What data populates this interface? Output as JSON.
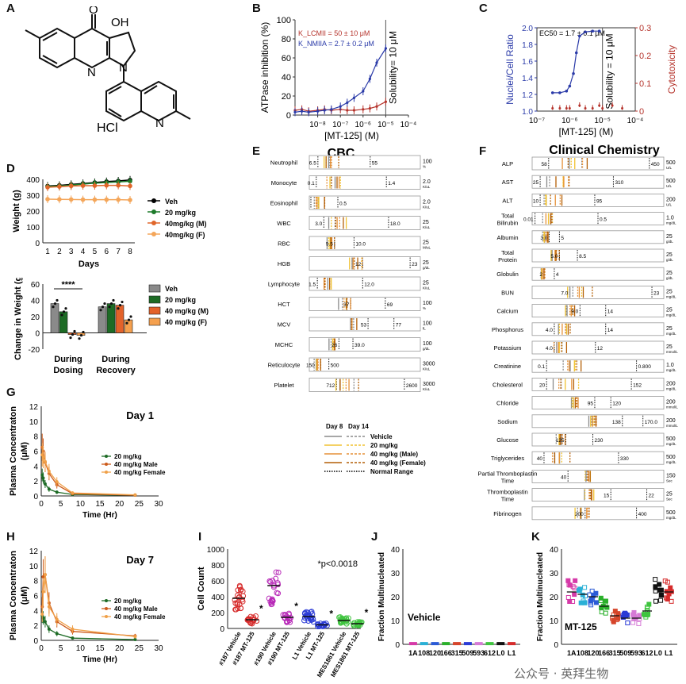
{
  "panel_letters": [
    "A",
    "B",
    "C",
    "D",
    "E",
    "F",
    "G",
    "H",
    "I",
    "J",
    "K"
  ],
  "structure": {
    "label_hcl": "HCl",
    "label_oh": "OH",
    "label_o": "O",
    "label_n1": "N",
    "label_n2": "N",
    "label_n3": "N"
  },
  "chart_data": [
    {
      "id": "B",
      "type": "line",
      "xlabel": "[MT-125] (M)",
      "ylabel": "ATPase inhibition (%)",
      "xscale": "log",
      "xlim": [
        1e-09,
        0.0001
      ],
      "ylim": [
        0,
        100
      ],
      "yticks": [
        0,
        20,
        40,
        60,
        80,
        100
      ],
      "xtick_labels": [
        "10^-8",
        "10^-7",
        "10^-6",
        "10^-5",
        "10^-4"
      ],
      "annotations": [
        "K_LCMII = 50 ± 10 μM",
        "K_NMIIA = 2.7 ± 0.2 μM",
        "Solubility= 10 μM"
      ],
      "series": [
        {
          "name": "LCMII",
          "color": "#b5332b",
          "x": [
            1e-09,
            2e-09,
            4e-09,
            1e-08,
            2e-08,
            4e-08,
            1e-07,
            2e-07,
            4e-07,
            1e-06,
            2e-06,
            4e-06,
            1e-05
          ],
          "y": [
            5,
            6,
            4,
            5,
            6,
            5,
            6,
            5,
            5,
            6,
            7,
            9,
            14
          ]
        },
        {
          "name": "NMIIA",
          "color": "#2a3aa8",
          "x": [
            1e-09,
            2e-09,
            4e-09,
            1e-08,
            2e-08,
            4e-08,
            1e-07,
            2e-07,
            4e-07,
            1e-06,
            2e-06,
            4e-06,
            1e-05
          ],
          "y": [
            3,
            4,
            3,
            4,
            5,
            6,
            9,
            13,
            18,
            25,
            38,
            55,
            70
          ]
        }
      ]
    },
    {
      "id": "C",
      "type": "line",
      "xlabel": "[MT-125] (M)",
      "ylabel": "Nuclei/Cell Ratio",
      "y2label": "Cytotoxicity",
      "xscale": "log",
      "xlim": [
        1e-07,
        0.0001
      ],
      "ylim": [
        1.0,
        2.0
      ],
      "yticks": [
        1.0,
        1.2,
        1.4,
        1.6,
        1.8,
        2.0
      ],
      "y2lim": [
        0,
        0.3
      ],
      "y2ticks": [
        0,
        0.1,
        0.2,
        0.3
      ],
      "xtick_labels": [
        "10^-7",
        "10^-6",
        "10^-5",
        "10^-4"
      ],
      "annotations": [
        "EC50 = 1.7 ± 0.1 μM",
        "Solubility = 10 μM"
      ],
      "series": [
        {
          "name": "Nuclei/Cell Ratio",
          "color": "#2a3aa8",
          "x": [
            3e-07,
            5e-07,
            8e-07,
            1e-06,
            1.3e-06,
            1.6e-06,
            2e-06,
            3e-06,
            5e-06,
            8e-06
          ],
          "y": [
            1.22,
            1.22,
            1.24,
            1.3,
            1.45,
            1.7,
            1.9,
            1.95,
            1.96,
            1.96
          ]
        },
        {
          "name": "Cytotoxicity",
          "color": "#b5332b",
          "x": [
            3e-07,
            5e-07,
            8e-07,
            1e-06,
            2e-06,
            3e-06,
            5e-06,
            8e-06,
            1e-05,
            2e-05,
            4e-05
          ],
          "y": [
            0.01,
            0.01,
            0.01,
            0.01,
            0.02,
            0.01,
            0.01,
            0.02,
            0.01,
            0.02,
            0.01
          ]
        }
      ]
    },
    {
      "id": "D1",
      "type": "line",
      "xlabel": "Days",
      "ylabel": "Weight (g)",
      "ylim": [
        0,
        400
      ],
      "yticks": [
        0,
        100,
        200,
        300,
        400
      ],
      "categories": [
        1,
        2,
        3,
        4,
        5,
        6,
        7,
        8
      ],
      "series": [
        {
          "name": "Veh",
          "color": "#000000",
          "values": [
            358,
            362,
            368,
            374,
            380,
            386,
            390,
            396
          ]
        },
        {
          "name": "20 mg/kg",
          "color": "#1d7a2a",
          "values": [
            355,
            358,
            364,
            370,
            376,
            380,
            384,
            388
          ]
        },
        {
          "name": "40mg/kg (M)",
          "color": "#e0662a",
          "values": [
            350,
            354,
            358,
            360,
            360,
            362,
            362,
            358
          ]
        },
        {
          "name": "40mg/kg (F)",
          "color": "#f4a65a",
          "values": [
            275,
            274,
            273,
            272,
            272,
            272,
            272,
            270
          ]
        }
      ]
    },
    {
      "id": "D2",
      "type": "bar",
      "ylabel": "Change in Weight (g)",
      "ylim": [
        -20,
        60
      ],
      "yticks": [
        -20,
        0,
        20,
        40,
        60
      ],
      "categories": [
        "During Dosing",
        "During Recovery"
      ],
      "annotations": [
        "****"
      ],
      "series": [
        {
          "name": "Veh",
          "color": "#8a8a8a",
          "values": [
            36,
            32
          ]
        },
        {
          "name": "20 mg/kg",
          "color": "#1d6b25",
          "values": [
            26,
            36
          ]
        },
        {
          "name": "40 mg/kg (M)",
          "color": "#e3622a",
          "values": [
            -2,
            34
          ]
        },
        {
          "name": "40 mg/kg (F)",
          "color": "#f5a04e",
          "values": [
            -3,
            16
          ]
        }
      ]
    },
    {
      "id": "E",
      "type": "table",
      "title": "CBC",
      "rows": [
        {
          "name": "Neutrophil",
          "low": "6.5",
          "high": "55",
          "unit": "100 %",
          "range": [
            6.5,
            55
          ],
          "max": 100
        },
        {
          "name": "Monocyte",
          "low": "0.1",
          "high": "1.4",
          "unit": "2.0 K/uL",
          "range": [
            0.1,
            1.4
          ],
          "max": 2
        },
        {
          "name": "Eosinophil",
          "low": "",
          "high": "0.5",
          "unit": "2.0 K/uL",
          "range": [
            0,
            0.5
          ],
          "max": 2
        },
        {
          "name": "WBC",
          "low": "3.0",
          "high": "18.0",
          "unit": "25 K/uL",
          "range": [
            3,
            18
          ],
          "max": 25
        },
        {
          "name": "RBC",
          "low": "5.5",
          "high": "10.0",
          "unit": "25 M/uL",
          "range": [
            5.5,
            10
          ],
          "max": 25
        },
        {
          "name": "HGB",
          "low": "12",
          "high": "23",
          "unit": "25 g/dL",
          "range": [
            12,
            23
          ],
          "max": 25
        },
        {
          "name": "Lymphocyte",
          "low": "1.5",
          "high": "12.0",
          "unit": "25 K/uL",
          "range": [
            1.5,
            12
          ],
          "max": 25
        },
        {
          "name": "HCT",
          "low": "37",
          "high": "69",
          "unit": "100 %",
          "range": [
            37,
            69
          ],
          "max": 100
        },
        {
          "name": "MCV",
          "low": "53",
          "high": "77",
          "unit": "100 fL",
          "range": [
            53,
            77
          ],
          "max": 100
        },
        {
          "name": "MCHC",
          "low": "26",
          "high": "39.0",
          "unit": "100 g/dL",
          "range": [
            26,
            39
          ],
          "max": 100
        },
        {
          "name": "Reticulocyte",
          "low": "150",
          "high": "500",
          "unit": "3000 K/uL",
          "range": [
            150,
            500
          ],
          "max": 3000
        },
        {
          "name": "Platelet",
          "low": "712",
          "high": "2600",
          "unit": "3000 K/uL",
          "range": [
            712,
            2600
          ],
          "max": 3000
        }
      ]
    },
    {
      "id": "F",
      "type": "table",
      "title": "Clinical Chemistry",
      "rows": [
        {
          "name": "ALP",
          "low": "58",
          "high": "450",
          "unit": "500 U/L",
          "range": [
            58,
            450
          ],
          "max": 500
        },
        {
          "name": "AST",
          "low": "25",
          "high": "310",
          "unit": "500 U/L",
          "range": [
            25,
            310
          ],
          "max": 500
        },
        {
          "name": "ALT",
          "low": "10",
          "high": "95",
          "unit": "200 U/L",
          "range": [
            10,
            95
          ],
          "max": 200
        },
        {
          "name": "Total Bilirubin",
          "low": "0.01",
          "high": "0.5",
          "unit": "1.0 mg/dL",
          "range": [
            0.01,
            0.5
          ],
          "max": 1
        },
        {
          "name": "Albumin",
          "low": "3.0",
          "high": "5",
          "unit": "25 g/dL",
          "range": [
            3,
            5
          ],
          "max": 25
        },
        {
          "name": "Total Protein",
          "low": "5.0",
          "high": "8.5",
          "unit": "25 g/dL",
          "range": [
            5,
            8.5
          ],
          "max": 25
        },
        {
          "name": "Globulin",
          "low": "2",
          "high": "4",
          "unit": "25 g/dL",
          "range": [
            2,
            4
          ],
          "max": 25
        },
        {
          "name": "BUN",
          "low": "7.0",
          "high": "23",
          "unit": "25 mg/dL",
          "range": [
            7,
            23
          ],
          "max": 25
        },
        {
          "name": "Calcium",
          "low": "9.0",
          "high": "14",
          "unit": "25 mg/dL",
          "range": [
            9,
            14
          ],
          "max": 25
        },
        {
          "name": "Phosphorus",
          "low": "4.0",
          "high": "14",
          "unit": "25 mg/dL",
          "range": [
            4,
            14
          ],
          "max": 25
        },
        {
          "name": "Potassium",
          "low": "4.0",
          "high": "12",
          "unit": "25 mmol/L",
          "range": [
            4,
            12
          ],
          "max": 25
        },
        {
          "name": "Creatinine",
          "low": "0.1",
          "high": "0.800",
          "unit": "1.0 mg/dL",
          "range": [
            0.1,
            0.8
          ],
          "max": 1
        },
        {
          "name": "Cholesterol",
          "low": "20",
          "high": "152",
          "unit": "200 mg/dL",
          "range": [
            20,
            152
          ],
          "max": 200
        },
        {
          "name": "Chloride",
          "low": "95",
          "high": "120",
          "unit": "200 mmol/L",
          "range": [
            95,
            120
          ],
          "max": 200
        },
        {
          "name": "Sodium",
          "low": "138",
          "high": "170.0",
          "unit": "200 mmol/L",
          "range": [
            138,
            170
          ],
          "max": 200
        },
        {
          "name": "Glucose",
          "low": "125",
          "high": "230",
          "unit": "500 mg/dL",
          "range": [
            125,
            230
          ],
          "max": 500
        },
        {
          "name": "Triglycerides",
          "low": "40",
          "high": "330",
          "unit": "500 mg/dL",
          "range": [
            40,
            330
          ],
          "max": 500
        },
        {
          "name": "Partial Thromboplastin Time",
          "low": "40",
          "high": "",
          "unit": "150 Sec",
          "range": [
            40,
            0
          ],
          "max": 150
        },
        {
          "name": "Thromboplastin Time",
          "low": "15",
          "high": "22",
          "unit": "25 Sec",
          "range": [
            15,
            22
          ],
          "max": 25
        },
        {
          "name": "Fibrinogen",
          "low": "200",
          "high": "400",
          "unit": "500 mg/dL",
          "range": [
            200,
            400
          ],
          "max": 500
        }
      ]
    },
    {
      "id": "EF-legend",
      "type": "legend",
      "headers": [
        "Day 8",
        "Day 14"
      ],
      "entries": [
        {
          "name": "Vehicle",
          "color": "#8a8a8a"
        },
        {
          "name": "20 mg/kg",
          "color": "#f1c232"
        },
        {
          "name": "40 mg/kg (Male)",
          "color": "#e69138"
        },
        {
          "name": "40 mg/kg (Female)",
          "color": "#b45f06"
        },
        {
          "name": "Normal Range",
          "color": "#000000"
        }
      ]
    },
    {
      "id": "G",
      "type": "line",
      "title": "Day 1",
      "xlabel": "Time (Hr)",
      "ylabel": "Plasma Concentraton (μM)",
      "xlim": [
        0,
        30
      ],
      "ylim": [
        0,
        12
      ],
      "xticks": [
        0,
        5,
        10,
        15,
        20,
        25,
        30
      ],
      "yticks": [
        0,
        2,
        4,
        6,
        8,
        10,
        12
      ],
      "series": [
        {
          "name": "20 mg/kg",
          "color": "#1d6b25",
          "x": [
            0.25,
            0.5,
            1,
            2,
            4,
            8,
            24
          ],
          "y": [
            2.8,
            2.4,
            1.6,
            0.9,
            0.5,
            0.2,
            0.1
          ]
        },
        {
          "name": "40 mg/kg Male",
          "color": "#cc5a1a",
          "x": [
            0.25,
            0.5,
            1,
            2,
            4,
            8,
            24
          ],
          "y": [
            6.5,
            6.0,
            4.5,
            3.0,
            1.5,
            0.3,
            0.1
          ]
        },
        {
          "name": "40 mg/kg Female",
          "color": "#f0a048",
          "x": [
            0.25,
            0.5,
            1,
            2,
            4,
            8,
            24
          ],
          "y": [
            5.5,
            5.2,
            4.6,
            3.3,
            1.9,
            0.4,
            0.15
          ]
        }
      ]
    },
    {
      "id": "H",
      "type": "line",
      "title": "Day 7",
      "xlabel": "Time (Hr)",
      "ylabel": "Plasma Concentraton (μM)",
      "xlim": [
        0,
        30
      ],
      "ylim": [
        0,
        12
      ],
      "xticks": [
        0,
        5,
        10,
        15,
        20,
        25,
        30
      ],
      "yticks": [
        0,
        2,
        4,
        6,
        8,
        10,
        12
      ],
      "series": [
        {
          "name": "20 mg/kg",
          "color": "#1d6b25",
          "x": [
            0.25,
            0.5,
            1,
            2,
            4,
            8,
            24
          ],
          "y": [
            3.3,
            3.0,
            2.5,
            1.5,
            0.9,
            0.3,
            0.1
          ]
        },
        {
          "name": "40 mg/kg Male",
          "color": "#cc5a1a",
          "x": [
            0.25,
            0.5,
            1,
            2,
            4,
            8,
            24
          ],
          "y": [
            4.5,
            8.5,
            8.8,
            5.0,
            2.5,
            1.2,
            0.6
          ]
        },
        {
          "name": "40 mg/kg Female",
          "color": "#f0a048",
          "x": [
            0.25,
            0.5,
            1,
            2,
            4,
            8,
            24
          ],
          "y": [
            3.5,
            6.5,
            8.8,
            4.5,
            2.8,
            1.5,
            0.5
          ]
        }
      ]
    },
    {
      "id": "I",
      "type": "scatter",
      "ylabel": "Cell Count",
      "ylim": [
        0,
        1000
      ],
      "yticks": [
        0,
        200,
        400,
        600,
        800,
        1000
      ],
      "categories": [
        "#187 Vehicle",
        "#187 MT-125",
        "#190 Vehicle",
        "#190 MT-125",
        "L1 Vehicle",
        "L1 MT-125",
        "MES1861 Vehicle",
        "MES1861 MT-125"
      ],
      "annotations": [
        "*",
        "*",
        "*",
        "*",
        "*p<0.0018"
      ],
      "means": [
        380,
        110,
        540,
        140,
        150,
        45,
        100,
        60
      ],
      "colors": [
        "#d62b2b",
        "#d62b2b",
        "#b82ab8",
        "#b82ab8",
        "#2b3bd6",
        "#2b3bd6",
        "#3fc43f",
        "#3fc43f"
      ]
    },
    {
      "id": "J",
      "type": "scatter",
      "ylabel": "Fraction Multinucleated",
      "ylim": [
        0,
        40
      ],
      "yticks": [
        0,
        10,
        20,
        30,
        40
      ],
      "categories": [
        "1A",
        "108",
        "120",
        "166",
        "315",
        "509",
        "593",
        "612",
        "L0",
        "L1"
      ],
      "annotations": [
        "Vehicle"
      ],
      "means": [
        0.3,
        0.3,
        0.3,
        0.3,
        0.3,
        0.3,
        0.3,
        0.3,
        0.3,
        0.3
      ],
      "colors": [
        "#d63aa8",
        "#2ab0d6",
        "#2b5bd6",
        "#2bb02b",
        "#d6452b",
        "#2b3bd6",
        "#d67ad6",
        "#3fc43f",
        "#111111",
        "#d62b2b"
      ]
    },
    {
      "id": "K",
      "type": "scatter",
      "ylabel": "Fraction Multinucleated",
      "ylim": [
        0,
        40
      ],
      "yticks": [
        0,
        10,
        20,
        30,
        40
      ],
      "categories": [
        "1A",
        "108",
        "120",
        "166",
        "315",
        "509",
        "593",
        "612",
        "L0",
        "L1"
      ],
      "annotations": [
        "MT-125"
      ],
      "means": [
        22,
        21,
        20,
        16,
        12,
        11,
        11,
        14,
        23,
        22
      ],
      "colors": [
        "#d63aa8",
        "#2ab0d6",
        "#2b5bd6",
        "#2bb02b",
        "#d6452b",
        "#2b3bd6",
        "#d67ad6",
        "#3fc43f",
        "#111111",
        "#d62b2b"
      ]
    }
  ],
  "watermark": "公众号 · 英拜生物"
}
